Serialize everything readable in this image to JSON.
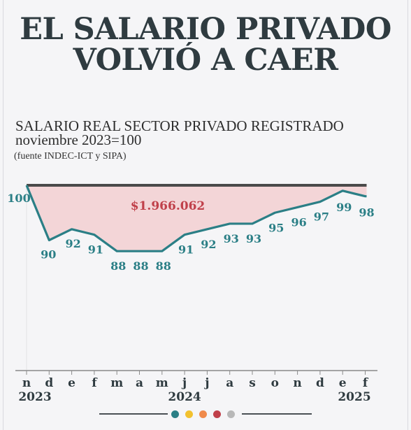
{
  "headline": {
    "line1": "EL SALARIO PRIVADO",
    "line2": "VOLVIÓ A CAER"
  },
  "subtitle": {
    "line1": "SALARIO REAL SECTOR PRIVADO REGISTRADO",
    "line2": "noviembre 2023=100"
  },
  "source": "(fuente INDEC-ICT y SIPA)",
  "colors": {
    "line": "#2b7f86",
    "fill": "#f3d5d7",
    "baseline": "#4a4a4a",
    "gap_label": "#c0404a",
    "text": "#2f3b40"
  },
  "footer_dots": [
    "#2b7f86",
    "#f2c12e",
    "#f08a4b",
    "#c0404a",
    "#b8b8b8"
  ],
  "chart_data": {
    "type": "line",
    "categories": [
      "n",
      "d",
      "e",
      "f",
      "m",
      "a",
      "m",
      "j",
      "j",
      "a",
      "s",
      "o",
      "n",
      "d",
      "e",
      "f"
    ],
    "values": [
      100,
      90,
      92,
      91,
      88,
      88,
      88,
      91,
      92,
      93,
      93,
      95,
      96,
      97,
      99,
      98
    ],
    "year_labels": [
      {
        "index": 0,
        "label": "2023"
      },
      {
        "index": 7,
        "label": "2024"
      },
      {
        "index": 14,
        "label": "2025"
      }
    ],
    "baseline": 100,
    "annotation": "$1.966.062",
    "ylim": [
      80,
      100
    ]
  }
}
